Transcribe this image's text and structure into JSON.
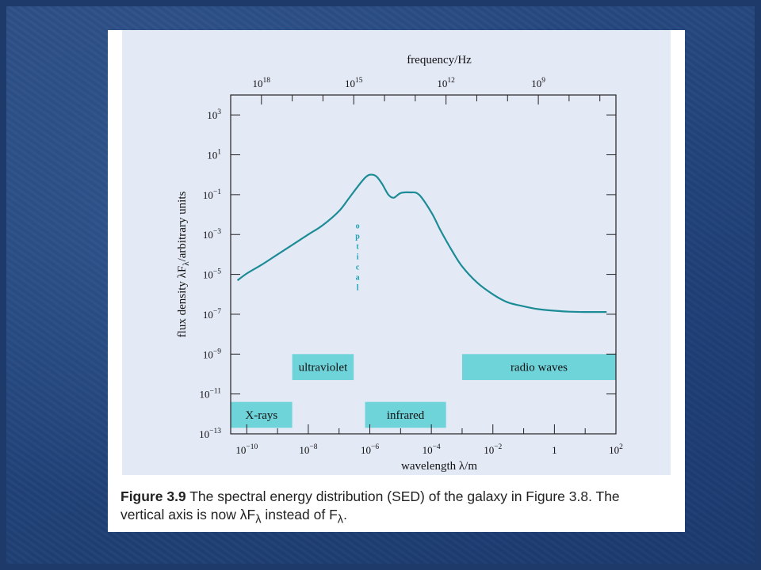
{
  "colors": {
    "background": "#22457c",
    "panel": "#e4e9f6",
    "curve": "#1b8c96",
    "band": "#6fd3da",
    "optical": "#1aa3b5"
  },
  "caption": {
    "figure_label": "Figure 3.9",
    "text_line1": "The spectral energy distribution (SED) of the galaxy in Figure 3.8. The",
    "text_line2": "vertical axis is now λF",
    "sub1": "λ",
    "text_line2b": " instead of F",
    "sub2": "λ",
    "text_line2c": "."
  },
  "chart_data": {
    "type": "line",
    "xscale": "log",
    "yscale": "log",
    "xlabel": "wavelength λ/m",
    "ylabel": "flux density λF",
    "ylabel_sub": "λ",
    "ylabel_tail": "/arbitrary units",
    "top_axis_label": "frequency/Hz",
    "xlim": [
      3e-11,
      100
    ],
    "ylim": [
      1e-13,
      10000.0
    ],
    "x_ticks": [
      {
        "value": 1e-10,
        "base": "10",
        "exp": "−10"
      },
      {
        "value": 1e-08,
        "base": "10",
        "exp": "−8"
      },
      {
        "value": 1e-06,
        "base": "10",
        "exp": "−6"
      },
      {
        "value": 0.0001,
        "base": "10",
        "exp": "−4"
      },
      {
        "value": 0.01,
        "base": "10",
        "exp": "−2"
      },
      {
        "value": 1,
        "base": "1",
        "exp": ""
      },
      {
        "value": 100,
        "base": "10",
        "exp": "2"
      }
    ],
    "y_ticks": [
      {
        "value": 1000.0,
        "base": "10",
        "exp": "3"
      },
      {
        "value": 10.0,
        "base": "10",
        "exp": "1"
      },
      {
        "value": 0.1,
        "base": "10",
        "exp": "−1"
      },
      {
        "value": 0.001,
        "base": "10",
        "exp": "−3"
      },
      {
        "value": 1e-05,
        "base": "10",
        "exp": "−5"
      },
      {
        "value": 1e-07,
        "base": "10",
        "exp": "−7"
      },
      {
        "value": 1e-09,
        "base": "10",
        "exp": "−9"
      },
      {
        "value": 1e-11,
        "base": "10",
        "exp": "−11"
      },
      {
        "value": 1e-13,
        "base": "10",
        "exp": "−13"
      }
    ],
    "freq_ticks": [
      {
        "freq": 1e+18,
        "base": "10",
        "exp": "18"
      },
      {
        "freq": 1000000000000000.0,
        "base": "10",
        "exp": "15"
      },
      {
        "freq": 1000000000000.0,
        "base": "10",
        "exp": "12"
      },
      {
        "freq": 1000000000.0,
        "base": "10",
        "exp": "9"
      }
    ],
    "series": [
      {
        "x": [
          5e-11,
          1e-10,
          3e-10,
          1e-09,
          3e-09,
          1e-08,
          3e-08,
          1e-07,
          2e-07,
          4e-07,
          7e-07,
          1e-06,
          1.6e-06,
          2.5e-06,
          4e-06,
          6e-06,
          1e-05,
          2e-05,
          4e-05,
          0.0001,
          0.0002,
          0.0005,
          0.001,
          0.003,
          0.01,
          0.03,
          0.1,
          0.3,
          1,
          3,
          10,
          50
        ],
        "y": [
          5e-06,
          1.1e-05,
          3e-05,
          0.0001,
          0.0003,
          0.001,
          0.003,
          0.015,
          0.06,
          0.25,
          0.7,
          1.0,
          0.85,
          0.35,
          0.1,
          0.07,
          0.12,
          0.13,
          0.1,
          0.013,
          0.0016,
          0.00013,
          2.5e-05,
          4e-06,
          1e-06,
          4e-07,
          2.5e-07,
          1.8e-07,
          1.5e-07,
          1.35e-07,
          1.3e-07,
          1.3e-07
        ]
      }
    ],
    "bands": [
      {
        "label": "X-rays",
        "x_range": [
          1e-11,
          3e-09
        ],
        "y_range": [
          2e-13,
          4e-12
        ]
      },
      {
        "label": "ultraviolet",
        "x_range": [
          3e-09,
          3e-07
        ],
        "y_range": [
          5e-11,
          1e-09
        ]
      },
      {
        "label": "infrared",
        "x_range": [
          7e-07,
          0.0003
        ],
        "y_range": [
          2e-13,
          4e-12
        ]
      },
      {
        "label": "radio waves",
        "x_range": [
          0.001,
          100
        ],
        "y_range": [
          5e-11,
          1e-09
        ]
      }
    ],
    "optical_letters": [
      "o",
      "p",
      "t",
      "i",
      "c",
      "a",
      "l"
    ],
    "optical_x": 4e-07
  }
}
